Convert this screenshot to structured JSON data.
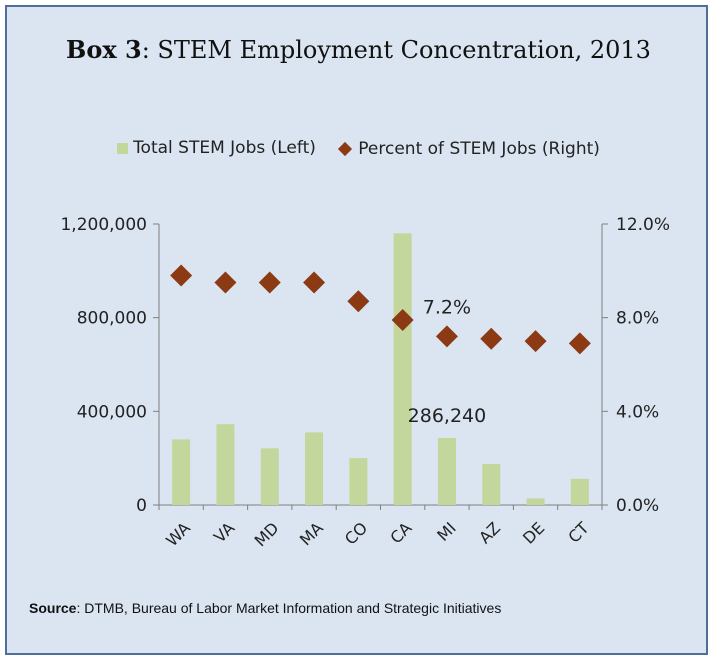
{
  "header": {
    "title_bold": "Box 3",
    "title_rest": ": STEM Employment Concentration, 2013"
  },
  "legend": {
    "bars_label": "Total STEM Jobs (Left)",
    "points_label": "Percent of STEM Jobs (Right)"
  },
  "source": {
    "label": "Source",
    "text": ": DTMB, Bureau of Labor Market Information and Strategic Initiatives"
  },
  "colors": {
    "background": "#dbe5f1",
    "border": "#4f6f9a",
    "bars": "#c3d69b",
    "points": "#8b3a13"
  },
  "chart_data": {
    "type": "bar",
    "categories": [
      "WA",
      "VA",
      "MD",
      "MA",
      "CO",
      "CA",
      "MI",
      "AZ",
      "DE",
      "CT"
    ],
    "series": [
      {
        "name": "Total STEM Jobs (Left)",
        "type": "bar",
        "axis": "left",
        "values": [
          280000,
          345000,
          242000,
          310000,
          200000,
          1160000,
          286240,
          175000,
          28000,
          112000
        ]
      },
      {
        "name": "Percent of STEM Jobs (Right)",
        "type": "scatter",
        "axis": "right",
        "values": [
          9.8,
          9.5,
          9.5,
          9.5,
          8.7,
          7.9,
          7.2,
          7.1,
          7.0,
          6.9
        ]
      }
    ],
    "ylim_left": [
      0,
      1200000
    ],
    "ylim_right": [
      0,
      12.0
    ],
    "yticks_left": [
      "0",
      "400,000",
      "800,000",
      "1,200,000"
    ],
    "yticks_right": [
      "0.0%",
      "4.0%",
      "8.0%",
      "12.0%"
    ],
    "annotations": [
      {
        "category": "MI",
        "series": "Percent of STEM Jobs (Right)",
        "text": "7.2%"
      },
      {
        "category": "MI",
        "series": "Total STEM Jobs (Left)",
        "text": "286,240"
      }
    ],
    "grid": false,
    "legend_position": "top"
  }
}
